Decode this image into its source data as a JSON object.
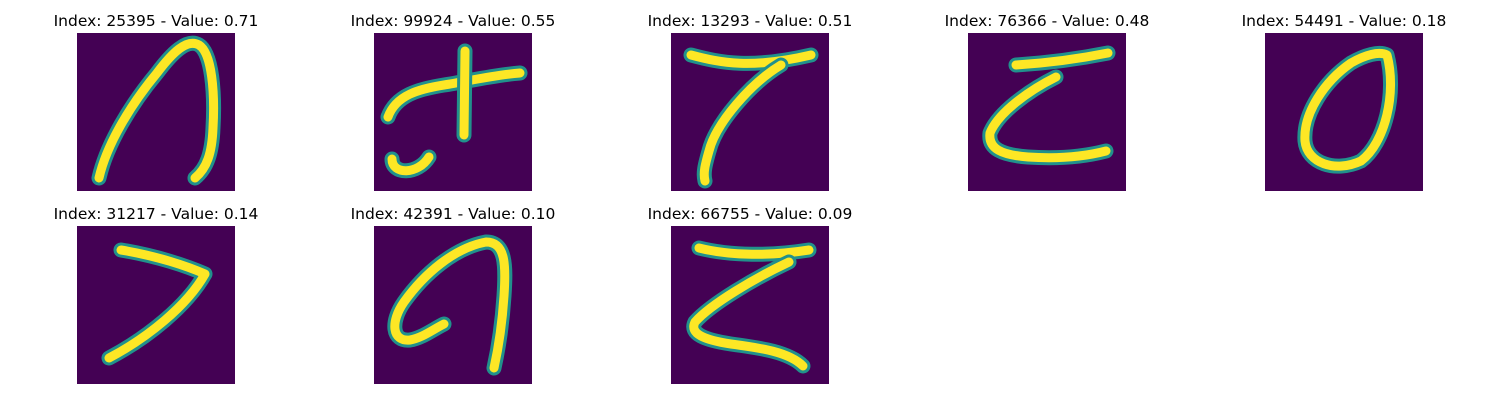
{
  "colors": {
    "background": "#440154",
    "stroke_core": "#fde725",
    "stroke_edge": "#21918c"
  },
  "panels": [
    {
      "index_label": "Index: 25395",
      "value_label": "Value: 0.71",
      "title": "Index: 25395 - Value: 0.71",
      "glyph": "tall-arch"
    },
    {
      "index_label": "Index: 99924",
      "value_label": "Value: 0.55",
      "title": "Index: 99924 - Value: 0.55",
      "glyph": "cross-with-hook"
    },
    {
      "index_label": "Index: 13293",
      "value_label": "Value: 0.51",
      "title": "Index: 13293 - Value: 0.51",
      "glyph": "seven"
    },
    {
      "index_label": "Index: 76366",
      "value_label": "Value: 0.48",
      "title": "Index: 76366 - Value: 0.48",
      "glyph": "z-shape"
    },
    {
      "index_label": "Index: 54491",
      "value_label": "Value: 0.18",
      "title": "Index: 54491 - Value: 0.18",
      "glyph": "zero"
    },
    {
      "index_label": "Index: 31217",
      "value_label": "Value: 0.14",
      "title": "Index: 31217 - Value: 0.14",
      "glyph": "angle"
    },
    {
      "index_label": "Index: 42391",
      "value_label": "Value: 0.10",
      "title": "Index: 42391 - Value: 0.10",
      "glyph": "loop-arch"
    },
    {
      "index_label": "Index: 66755",
      "value_label": "Value: 0.09",
      "title": "Index: 66755 - Value: 0.09",
      "glyph": "z-shape-bold"
    }
  ]
}
